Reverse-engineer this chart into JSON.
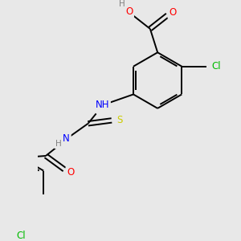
{
  "background_color": "#e8e8e8",
  "bond_color": "#000000",
  "atom_colors": {
    "C": "#000000",
    "H": "#808080",
    "O": "#ff0000",
    "N": "#0000ff",
    "S": "#cccc00",
    "Cl": "#00bb00"
  },
  "figsize": [
    3.0,
    3.0
  ],
  "dpi": 100
}
